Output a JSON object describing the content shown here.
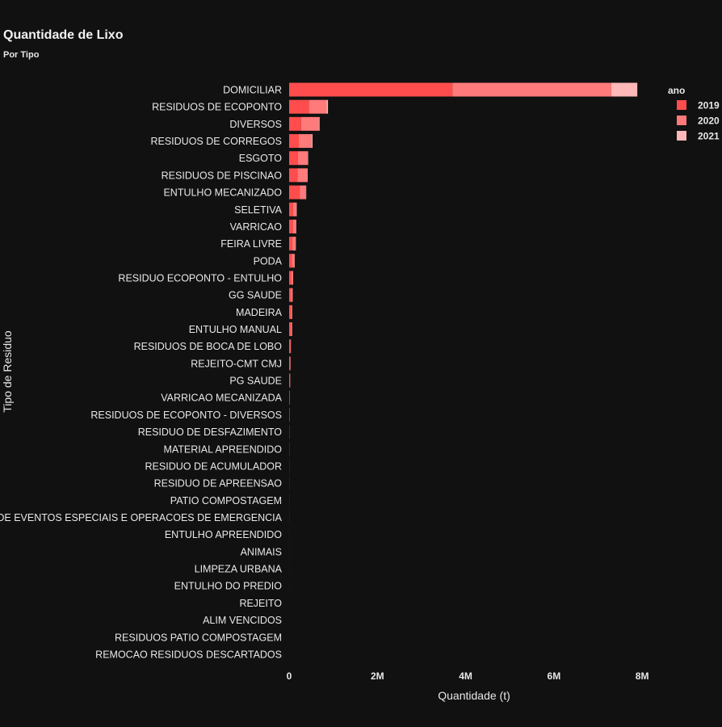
{
  "chart_data": {
    "type": "bar",
    "orientation": "horizontal",
    "barmode": "stack",
    "title": "Quantidade de Lixo",
    "subtitle": "Por Tipo",
    "xlabel": "Quantidade (t)",
    "ylabel": "Tipo de Residuo",
    "xlim": [
      0,
      8400000
    ],
    "xticks": [
      0,
      2000000,
      4000000,
      6000000,
      8000000
    ],
    "xtick_labels": [
      "0",
      "2M",
      "4M",
      "6M",
      "8M"
    ],
    "grid": false,
    "legend_title": "ano",
    "legend_position": "right",
    "categories": [
      "DOMICILIAR",
      "RESIDUOS DE ECOPONTO",
      "DIVERSOS",
      "RESIDUOS DE CORREGOS",
      "ESGOTO",
      "RESIDUOS DE PISCINAO",
      "ENTULHO MECANIZADO",
      "SELETIVA",
      "VARRICAO",
      "FEIRA LIVRE",
      "PODA",
      "RESIDUO ECOPONTO - ENTULHO",
      "GG SAUDE",
      "MADEIRA",
      "ENTULHO MANUAL",
      "RESIDUOS DE BOCA DE LOBO",
      "REJEITO-CMT CMJ",
      "PG SAUDE",
      "VARRICAO MECANIZADA",
      "RESIDUOS DE ECOPONTO - DIVERSOS",
      "RESIDUO DE DESFAZIMENTO",
      "MATERIAL APREENDIDO",
      "RESIDUO DE ACUMULADOR",
      "RESIDUO DE APREENSAO",
      "PATIO COMPOSTAGEM",
      "E DE EVENTOS ESPECIAIS E OPERACOES DE EMERGENCIA",
      "ENTULHO APREENDIDO",
      "ANIMAIS",
      "LIMPEZA URBANA",
      "ENTULHO DO PREDIO",
      "REJEITO",
      "ALIM VENCIDOS",
      "RESIDUOS PATIO COMPOSTAGEM",
      "REMOCAO RESIDUOS DESCARTADOS"
    ],
    "series": [
      {
        "name": "2019",
        "color": "#ff4d4d",
        "values": [
          3700000,
          450000,
          270000,
          220000,
          200000,
          190000,
          240000,
          90000,
          85000,
          75000,
          65000,
          55000,
          45000,
          40000,
          38000,
          25000,
          20000,
          15000,
          7000,
          6000,
          3000,
          2000,
          1500,
          1200,
          1000,
          800,
          700,
          600,
          500,
          400,
          300,
          200,
          150,
          100
        ]
      },
      {
        "name": "2020",
        "color": "#ff7a7a",
        "values": [
          3600000,
          400000,
          400000,
          290000,
          220000,
          220000,
          140000,
          80000,
          75000,
          75000,
          60000,
          35000,
          35000,
          30000,
          30000,
          15000,
          12000,
          10000,
          5000,
          4000,
          2000,
          1500,
          1000,
          900,
          800,
          600,
          500,
          400,
          300,
          300,
          200,
          150,
          100,
          80
        ]
      },
      {
        "name": "2021",
        "color": "#ffb8b8",
        "values": [
          590000,
          30000,
          20000,
          20000,
          10000,
          10000,
          8000,
          5000,
          4000,
          4000,
          3000,
          2000,
          2000,
          2000,
          2000,
          1000,
          1000,
          800,
          500,
          400,
          300,
          200,
          150,
          100,
          100,
          80,
          60,
          50,
          40,
          30,
          20,
          20,
          10,
          10
        ]
      }
    ]
  }
}
